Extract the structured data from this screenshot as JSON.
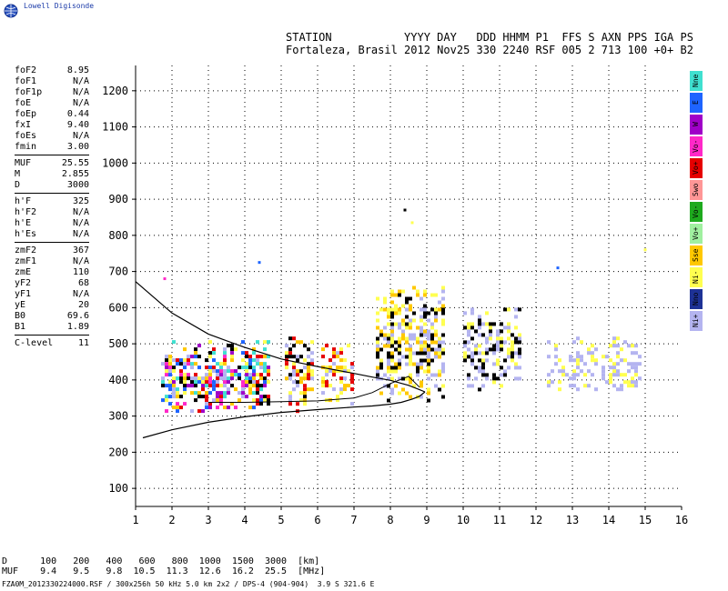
{
  "logo_text": "Lowell Digisonde",
  "header": {
    "line1": "STATION           YYYY DAY   DDD HHMM P1  FFS S AXN PPS IGA PS",
    "line2": "Fortaleza, Brasil 2012 Nov25 330 2240 RSF 005 2 713 100 +0+ B2"
  },
  "params": [
    {
      "label": "foF2",
      "value": "8.95"
    },
    {
      "label": "foF1",
      "value": "N/A"
    },
    {
      "label": "foF1p",
      "value": "N/A"
    },
    {
      "label": "foE",
      "value": "N/A"
    },
    {
      "label": "foEp",
      "value": "0.44"
    },
    {
      "label": "fxI",
      "value": "9.40"
    },
    {
      "label": "foEs",
      "value": "N/A"
    },
    {
      "label": "fmin",
      "value": "3.00"
    },
    {
      "label": "MUF",
      "value": "25.55"
    },
    {
      "label": "M",
      "value": "2.855"
    },
    {
      "label": "D",
      "value": "3000"
    },
    {
      "label": "h'F",
      "value": "325"
    },
    {
      "label": "h'F2",
      "value": "N/A"
    },
    {
      "label": "h'E",
      "value": "N/A"
    },
    {
      "label": "h'Es",
      "value": "N/A"
    },
    {
      "label": "zmF2",
      "value": "367"
    },
    {
      "label": "zmF1",
      "value": "N/A"
    },
    {
      "label": "zmE",
      "value": "110"
    },
    {
      "label": "yF2",
      "value": "68"
    },
    {
      "label": "yF1",
      "value": "N/A"
    },
    {
      "label": "yE",
      "value": "20"
    },
    {
      "label": "B0",
      "value": "69.6"
    },
    {
      "label": "B1",
      "value": "1.89"
    },
    {
      "label": "C-level",
      "value": "11"
    }
  ],
  "legend": [
    {
      "label": "Nne",
      "color": "#40e0d0"
    },
    {
      "label": "E",
      "color": "#1e64ff"
    },
    {
      "label": "W",
      "color": "#a000c8"
    },
    {
      "label": "Vo-",
      "color": "#ff28c8"
    },
    {
      "label": "Vo+",
      "color": "#e60000"
    },
    {
      "label": "Swo",
      "color": "#ff9696"
    },
    {
      "label": "Vo-",
      "color": "#1eaa1e"
    },
    {
      "label": "Vo+",
      "color": "#a0f0a0"
    },
    {
      "label": "Sse",
      "color": "#ffc800"
    },
    {
      "label": "Ni-",
      "color": "#ffff50"
    },
    {
      "label": "Nno",
      "color": "#1e3296"
    },
    {
      "label": "Ni+",
      "color": "#b4b4f0"
    }
  ],
  "footer": {
    "d_row": "D      100   200   400   600   800  1000  1500  3000  [km]",
    "muf_row": "MUF    9.4   9.5   9.8  10.5  11.3  12.6  16.2  25.5  [MHz]",
    "file_line": "FZA0M_2012330224000.RSF / 300x256h 50 kHz 5.0 km 2x2 / DPS-4 (904-904)  3.9 S 321.6 E"
  },
  "chart_data": {
    "type": "scatter",
    "x_ticks": [
      1,
      2,
      3,
      4,
      5,
      6,
      7,
      8,
      9,
      10,
      11,
      12,
      13,
      14,
      15,
      16
    ],
    "y_ticks": [
      100,
      200,
      300,
      400,
      500,
      600,
      700,
      800,
      900,
      1000,
      1100,
      1200
    ],
    "xlim": [
      1,
      16
    ],
    "ylim": [
      50,
      1270
    ],
    "grid": true,
    "profile_curve": {
      "x": [
        1.0,
        2.0,
        3.0,
        4.0,
        5.0,
        6.0,
        7.0,
        7.5,
        8.0,
        8.5,
        8.8,
        8.95
      ],
      "y": [
        672,
        585,
        527,
        490,
        458,
        437,
        418,
        408,
        399,
        385,
        373,
        367
      ]
    },
    "virtual_height_trace": {
      "x": [
        1.2,
        2.0,
        3.0,
        4.0,
        5.0,
        6.0,
        7.0,
        7.5,
        8.0,
        8.3,
        8.6,
        8.8,
        8.95
      ],
      "y": [
        240,
        262,
        283,
        298,
        310,
        318,
        325,
        328,
        333,
        338,
        347,
        355,
        367
      ]
    },
    "o_trace": {
      "x": [
        3.0,
        4.0,
        5.0,
        6.0,
        7.0,
        7.5,
        8.0,
        8.5,
        8.8
      ],
      "y": [
        338,
        338,
        340,
        342,
        350,
        365,
        390,
        410,
        380
      ]
    },
    "echo_regions": [
      {
        "x": [
          1.7,
          4.7
        ],
        "y": [
          315,
          510
        ],
        "colors": [
          "#e60000",
          "#000000",
          "#ffc800",
          "#ff28c8",
          "#1e64ff",
          "#40e0d0",
          "#ffff50",
          "#b4b4f0",
          "#a000c8"
        ],
        "density": 0.5
      },
      {
        "x": [
          5.1,
          5.9
        ],
        "y": [
          315,
          520
        ],
        "colors": [
          "#ffff50",
          "#ffc800",
          "#000000",
          "#b4b4f0",
          "#e60000"
        ],
        "density": 0.45
      },
      {
        "x": [
          6.1,
          7.0
        ],
        "y": [
          330,
          510
        ],
        "colors": [
          "#ffff50",
          "#b4b4f0",
          "#e60000",
          "#ffc800"
        ],
        "density": 0.3
      },
      {
        "x": [
          7.6,
          9.4
        ],
        "y": [
          340,
          660
        ],
        "colors": [
          "#ffff50",
          "#ffc800",
          "#b4b4f0",
          "#000000"
        ],
        "density": 0.45
      },
      {
        "x": [
          10.0,
          11.6
        ],
        "y": [
          370,
          600
        ],
        "colors": [
          "#b4b4f0",
          "#b4b4f0",
          "#ffff50",
          "#000000"
        ],
        "density": 0.4
      },
      {
        "x": [
          12.3,
          15.0
        ],
        "y": [
          370,
          520
        ],
        "colors": [
          "#b4b4f0",
          "#b4b4f0",
          "#ffff50"
        ],
        "density": 0.3
      }
    ],
    "isolated_points": [
      {
        "x": 1.8,
        "y": 680,
        "color": "#ff28c8"
      },
      {
        "x": 4.4,
        "y": 725,
        "color": "#1e64ff"
      },
      {
        "x": 8.4,
        "y": 870,
        "color": "#000000"
      },
      {
        "x": 8.6,
        "y": 835,
        "color": "#ffff50"
      },
      {
        "x": 12.6,
        "y": 710,
        "color": "#1e64ff"
      },
      {
        "x": 15.0,
        "y": 760,
        "color": "#ffff50"
      }
    ]
  }
}
